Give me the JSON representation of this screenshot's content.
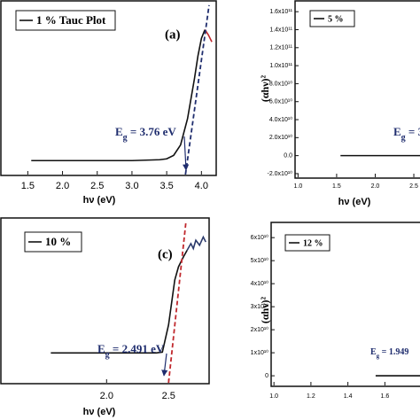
{
  "chart_data": [
    {
      "type": "line",
      "panel_label": "(a)",
      "x_label": "hν (eV)",
      "x": [
        1.55,
        2.0,
        2.5,
        3.0,
        3.4,
        3.5,
        3.6,
        3.7,
        3.8,
        3.9,
        3.95,
        4.0,
        4.05,
        4.1,
        4.15
      ],
      "series": [
        {
          "name": "1 % Tauc Plot",
          "color": "#111111",
          "values": [
            8,
            8,
            8,
            8,
            8.5,
            9,
            11,
            17,
            32,
            55,
            68,
            78,
            83,
            null,
            null
          ]
        },
        {
          "color": "#c0282d",
          "values": [
            null,
            null,
            null,
            null,
            null,
            null,
            null,
            null,
            null,
            null,
            null,
            null,
            83,
            80,
            76
          ]
        }
      ],
      "tangent": {
        "color": "#1f2d6e",
        "x": [
          3.77,
          4.11
        ],
        "y": [
          0,
          97
        ]
      },
      "eg_label": [
        "E",
        "g",
        " = 3.76 eV"
      ],
      "xlim": [
        1.1,
        4.2
      ],
      "ylim": [
        0,
        100
      ],
      "xticks": [
        1.5,
        {
          "value": 2,
          "label": "2.0"
        },
        2.5,
        {
          "value": 3,
          "label": "3.0"
        },
        3.5,
        {
          "value": 4,
          "label": "4.0"
        }
      ]
    },
    {
      "type": "line",
      "x_label": "hν (eV)",
      "y_label": "(αhν)²",
      "x": [
        1.55,
        2.0,
        2.58
      ],
      "series": [
        {
          "name": "5 %",
          "color": "#111111",
          "values": [
            0,
            0,
            0
          ]
        }
      ],
      "eg_label": [
        "E",
        "g",
        " = 3."
      ],
      "xlim": [
        0.95,
        2.58
      ],
      "ylim": [
        -24000000000,
        173000000000
      ],
      "xticks": [
        {
          "value": 1,
          "label": "1.0"
        },
        1.5,
        {
          "value": 2,
          "label": "2.0"
        },
        2.5
      ],
      "yticks": [
        {
          "value": -20000000000,
          "label": "-2.0x10¹⁰"
        },
        {
          "value": 0,
          "label": "0.0"
        },
        {
          "value": 20000000000,
          "label": "2.0x10¹⁰"
        },
        {
          "value": 40000000000,
          "label": "4.0x10¹⁰"
        },
        {
          "value": 60000000000,
          "label": "6.0x10¹⁰"
        },
        {
          "value": 80000000000,
          "label": "8.0x10¹⁰"
        },
        {
          "value": 100000000000,
          "label": "1.0x10¹¹"
        },
        {
          "value": 120000000000,
          "label": "1.2x10¹¹"
        },
        {
          "value": 140000000000,
          "label": "1.4x10¹¹"
        },
        {
          "value": 160000000000,
          "label": "1.6x10¹¹"
        }
      ]
    },
    {
      "type": "line",
      "panel_label": "(c)",
      "x_label": "hν (eV)",
      "x": [
        1.55,
        2.0,
        2.4,
        2.45,
        2.5,
        2.55,
        2.58,
        2.62,
        2.65,
        2.68,
        2.7,
        2.72,
        2.75,
        2.78,
        2.8
      ],
      "series": [
        {
          "name": "10 %",
          "color": "#111111",
          "values": [
            18,
            18,
            18,
            18.5,
            35,
            62,
            70,
            76,
            80,
            null,
            null,
            null,
            null,
            null,
            null
          ]
        },
        {
          "color": "#2b3a6b",
          "values": [
            null,
            null,
            null,
            null,
            null,
            null,
            null,
            null,
            80,
            84,
            81,
            86,
            83,
            88,
            85
          ]
        }
      ],
      "tangent": {
        "color": "#c0282d",
        "x": [
          2.5,
          2.64
        ],
        "y": [
          0,
          97
        ]
      },
      "eg_label": [
        "E",
        "g",
        " = 2.491 eV"
      ],
      "xlim": [
        1.14,
        2.82
      ],
      "ylim": [
        0,
        100
      ],
      "xticks": [
        {
          "value": 2,
          "label": "2.0"
        },
        2.5
      ]
    },
    {
      "type": "line",
      "y_label": "(αhν)²",
      "x": [
        1.55,
        1.7,
        1.79
      ],
      "series": [
        {
          "name": "12 %",
          "color": "#111111",
          "values": [
            0,
            0,
            0
          ]
        }
      ],
      "eg_label": [
        "E",
        "g",
        " = 1.949"
      ],
      "xlim": [
        0.98,
        1.79
      ],
      "ylim": [
        -4200000000,
        67000000000
      ],
      "xticks": [
        {
          "value": 1,
          "label": "1.0"
        },
        1.2,
        1.4,
        1.6
      ],
      "yticks": [
        0,
        {
          "value": 10000000000,
          "label": "1x10¹⁰"
        },
        {
          "value": 20000000000,
          "label": "2x10¹⁰"
        },
        {
          "value": 30000000000,
          "label": "3x10¹⁰"
        },
        {
          "value": 40000000000,
          "label": "4x10¹⁰"
        },
        {
          "value": 50000000000,
          "label": "5x10¹⁰"
        },
        {
          "value": 60000000000,
          "label": "6x10¹⁰"
        }
      ]
    }
  ]
}
